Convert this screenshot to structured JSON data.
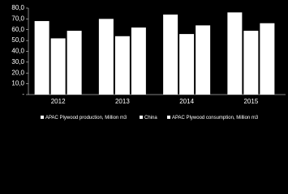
{
  "chart_data": {
    "type": "bar",
    "categories": [
      "2012",
      "2013",
      "2014",
      "2015"
    ],
    "series": [
      {
        "name": "APAC Plywood production, Million m3",
        "color": "#ffffff",
        "values": [
          68,
          70,
          74,
          76
        ]
      },
      {
        "name": "China",
        "color": "#ffffff",
        "values": [
          52,
          54,
          56,
          59
        ]
      },
      {
        "name": "APAC Plywood consumption, Million m3",
        "color": "#ffffff",
        "values": [
          59,
          62,
          64,
          66
        ]
      }
    ],
    "ylim": [
      0,
      80
    ],
    "yticks": [
      {
        "value": 0,
        "label": "-"
      },
      {
        "value": 10,
        "label": "10,0"
      },
      {
        "value": 20,
        "label": "20,0"
      },
      {
        "value": 30,
        "label": "30,0"
      },
      {
        "value": 40,
        "label": "40,0"
      },
      {
        "value": 50,
        "label": "50,0"
      },
      {
        "value": 60,
        "label": "60,0"
      },
      {
        "value": 70,
        "label": "70,0"
      },
      {
        "value": 80,
        "label": "80,0"
      }
    ],
    "grid": false,
    "legend": "bottom"
  }
}
